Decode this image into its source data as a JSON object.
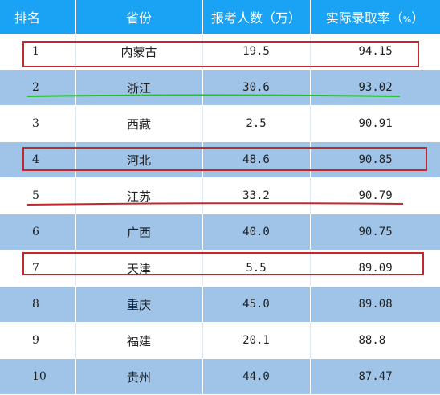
{
  "headers": {
    "rank": "排名",
    "province": "省份",
    "applicants": "报考人数（万）",
    "rate_main": "实际录取率（",
    "rate_pct": "%",
    "rate_close": "）"
  },
  "rows": [
    {
      "rank": "1",
      "province": "内蒙古",
      "applicants": "19.5",
      "rate": "94.15"
    },
    {
      "rank": "2",
      "province": "浙江",
      "applicants": "30.6",
      "rate": "93.02"
    },
    {
      "rank": "3",
      "province": "西藏",
      "applicants": "2.5",
      "rate": "90.91"
    },
    {
      "rank": "4",
      "province": "河北",
      "applicants": "48.6",
      "rate": "90.85"
    },
    {
      "rank": "5",
      "province": "江苏",
      "applicants": "33.2",
      "rate": "90.79"
    },
    {
      "rank": "6",
      "province": "广西",
      "applicants": "40.0",
      "rate": "90.75"
    },
    {
      "rank": "7",
      "province": "天津",
      "applicants": "5.5",
      "rate": "89.09"
    },
    {
      "rank": "8",
      "province": "重庆",
      "applicants": "45.0",
      "rate": "89.08"
    },
    {
      "rank": "9",
      "province": "福建",
      "applicants": "20.1",
      "rate": "88.8"
    },
    {
      "rank": "10",
      "province": "贵州",
      "applicants": "44.0",
      "rate": "87.47"
    }
  ],
  "colors": {
    "header_bg": "#1aa3f5",
    "stripe_bg": "#9fc4e8",
    "highlight_box": "#c0282d",
    "green_underline": "#22c22a",
    "red_underline": "#c0282d"
  }
}
